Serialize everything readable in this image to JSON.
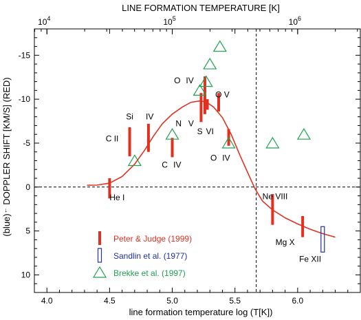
{
  "chart_data": {
    "type": "scatter",
    "title": "",
    "top_axis_label": "LINE FORMATION TEMPERATURE [K]",
    "top_ticks": [
      {
        "label": "10",
        "exp": "4",
        "x": 4.0
      },
      {
        "label": "10",
        "exp": "5",
        "x": 5.0
      },
      {
        "label": "10",
        "exp": "6",
        "x": 6.0
      }
    ],
    "xlabel": "line formation temperature log (T[K])",
    "ylabel_prefix": "(blue)",
    "ylabel_arrow": "←",
    "ylabel_main": " DOPPLER SHIFT [KM/S] (RED)",
    "xlim": [
      3.9,
      6.5
    ],
    "ylim": [
      -18,
      12
    ],
    "xticks": [
      4.0,
      4.5,
      5.0,
      5.5,
      6.0
    ],
    "xtick_labels": [
      "4.0",
      "4.5",
      "5.0",
      "5.5",
      "6.0"
    ],
    "yticks": [
      -15,
      -10,
      -5,
      0,
      5,
      10
    ],
    "ytick_labels": [
      "-15",
      "-10",
      "-5",
      "0",
      "5",
      "10"
    ],
    "grid": false,
    "zero_line": 0,
    "vertical_line_x": 5.67,
    "colors": {
      "peter": "#e03020",
      "sandlin": "#2030a0",
      "brekke": "#20a050",
      "axis": "#000000"
    },
    "series": [
      {
        "name": "Peter & Judge (1999)",
        "marker": "bar",
        "points": [
          {
            "x": 4.5,
            "y0": -1.0,
            "y1": 1.3
          },
          {
            "x": 4.66,
            "y0": -3.5,
            "y1": -6.8
          },
          {
            "x": 4.81,
            "y0": -4.0,
            "y1": -7.2
          },
          {
            "x": 5.0,
            "y0": -3.4,
            "y1": -5.6
          },
          {
            "x": 5.23,
            "y0": -7.4,
            "y1": -10.7
          },
          {
            "x": 5.26,
            "y0": -8.3,
            "y1": -12.6
          },
          {
            "x": 5.28,
            "y0": -8.8,
            "y1": -10.0
          },
          {
            "x": 5.37,
            "y0": -8.6,
            "y1": -10.7
          },
          {
            "x": 5.45,
            "y0": -4.7,
            "y1": -6.6
          },
          {
            "x": 5.8,
            "y0": 0.8,
            "y1": 4.3
          },
          {
            "x": 6.04,
            "y0": 3.3,
            "y1": 5.7
          }
        ]
      },
      {
        "name": "Sandlin et al. (1977)",
        "marker": "open-rect",
        "points": [
          {
            "x": 6.2,
            "y0": 4.5,
            "y1": 7.4
          }
        ]
      },
      {
        "name": "Brekke et al. (1997)",
        "marker": "open-triangle",
        "points": [
          {
            "x": 4.7,
            "y": -3.0
          },
          {
            "x": 5.0,
            "y": -6.0
          },
          {
            "x": 5.22,
            "y": -11.0
          },
          {
            "x": 5.27,
            "y": -12.0
          },
          {
            "x": 5.3,
            "y": -14.0
          },
          {
            "x": 5.38,
            "y": -16.0
          },
          {
            "x": 5.45,
            "y": -5.0
          },
          {
            "x": 5.8,
            "y": -5.0
          },
          {
            "x": 6.05,
            "y": -6.0
          }
        ]
      }
    ],
    "fit_curve": {
      "color": "#e03020",
      "points": [
        [
          4.32,
          -0.2
        ],
        [
          4.4,
          -0.22
        ],
        [
          4.5,
          -0.45
        ],
        [
          4.6,
          -1.2
        ],
        [
          4.7,
          -2.6
        ],
        [
          4.78,
          -4.2
        ],
        [
          4.85,
          -5.8
        ],
        [
          4.92,
          -7.2
        ],
        [
          5.0,
          -8.3
        ],
        [
          5.08,
          -9.1
        ],
        [
          5.15,
          -9.65
        ],
        [
          5.22,
          -9.8
        ],
        [
          5.27,
          -9.7
        ],
        [
          5.33,
          -9.1
        ],
        [
          5.4,
          -7.9
        ],
        [
          5.47,
          -6.0
        ],
        [
          5.54,
          -3.6
        ],
        [
          5.6,
          -1.7
        ],
        [
          5.66,
          0.2
        ],
        [
          5.72,
          1.6
        ],
        [
          5.8,
          2.6
        ],
        [
          5.9,
          3.5
        ],
        [
          6.0,
          4.2
        ],
        [
          6.1,
          4.8
        ],
        [
          6.2,
          5.3
        ],
        [
          6.3,
          5.7
        ]
      ]
    },
    "annotations": [
      {
        "text": "He I",
        "x": 4.56,
        "y": 1.5
      },
      {
        "text": "C II",
        "x": 4.52,
        "y": -5.2
      },
      {
        "text": "Si",
        "x": 4.66,
        "y": -7.7
      },
      {
        "text": "IV",
        "x": 4.82,
        "y": -7.7
      },
      {
        "text": "N",
        "x": 5.05,
        "y": -6.9
      },
      {
        "text": "V",
        "x": 5.15,
        "y": -6.9
      },
      {
        "text": "C",
        "x": 4.94,
        "y": -2.2
      },
      {
        "text": "IV",
        "x": 5.04,
        "y": -2.2
      },
      {
        "text": "O",
        "x": 5.04,
        "y": -11.8
      },
      {
        "text": "IV",
        "x": 5.14,
        "y": -11.8
      },
      {
        "text": "O V",
        "x": 5.4,
        "y": -10.2
      },
      {
        "text": "S",
        "x": 5.22,
        "y": -6.0
      },
      {
        "text": "VI",
        "x": 5.3,
        "y": -6.0
      },
      {
        "text": "O",
        "x": 5.33,
        "y": -3.0
      },
      {
        "text": "IV",
        "x": 5.43,
        "y": -3.0
      },
      {
        "text": "Ne VIII",
        "x": 5.82,
        "y": 1.4
      },
      {
        "text": "Mg X",
        "x": 5.9,
        "y": 6.6
      },
      {
        "text": "Fe XII",
        "x": 6.1,
        "y": 8.5
      }
    ],
    "legend": {
      "placement": "bottom-left",
      "entries": [
        {
          "label": "Peter & Judge (1999)",
          "marker": "bar",
          "color": "#e03020",
          "text_color": "#e03020"
        },
        {
          "label": "Sandlin et al. (1977)",
          "marker": "open-rect",
          "color": "#2030a0",
          "text_color": "#2030a0"
        },
        {
          "label": "Brekke et al. (1997)",
          "marker": "open-triangle",
          "color": "#20a050",
          "text_color": "#20a050"
        }
      ]
    }
  }
}
